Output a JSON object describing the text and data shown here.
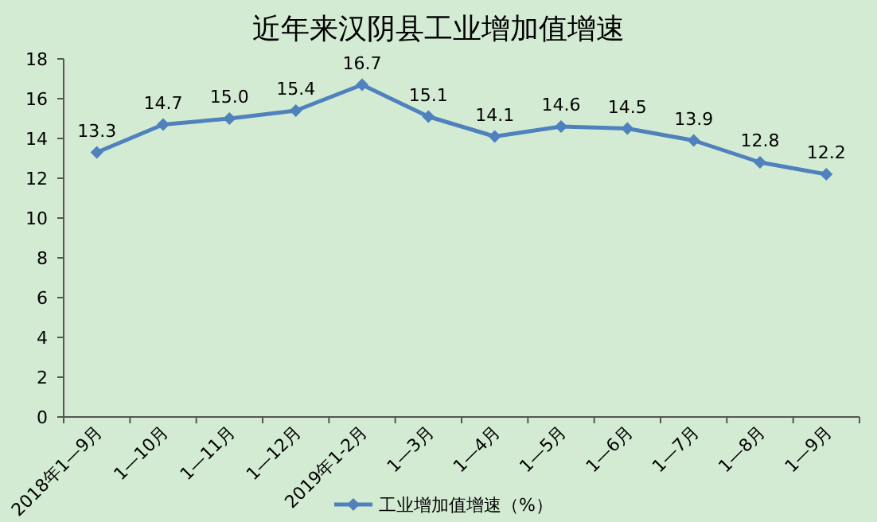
{
  "chart_data": {
    "type": "line",
    "title": "近年来汉阴县工业增加值增速",
    "categories": [
      "2018年1—9月",
      "1—10月",
      "1—11月",
      "1—12月",
      "2019年1-2月",
      "1—3月",
      "1—4月",
      "1—5月",
      "1—6月",
      "1—7月",
      "1—8月",
      "1—9月"
    ],
    "series": [
      {
        "name": "工业增加值增速（%）",
        "color": "#4f81bd",
        "values": [
          13.3,
          14.7,
          15.0,
          15.4,
          16.7,
          15.1,
          14.1,
          14.6,
          14.5,
          13.9,
          12.8,
          12.2
        ]
      }
    ],
    "value_labels": [
      "13.3",
      "14.7",
      "15.0",
      "15.4",
      "16.7",
      "15.1",
      "14.1",
      "14.6",
      "14.5",
      "13.9",
      "12.8",
      "12.2"
    ],
    "ylim": [
      0,
      18
    ],
    "yticks": [
      0,
      2,
      4,
      6,
      8,
      10,
      12,
      14,
      16,
      18
    ],
    "grid": false,
    "legend": "bottom",
    "marker": "diamond",
    "line_style": "solid"
  }
}
